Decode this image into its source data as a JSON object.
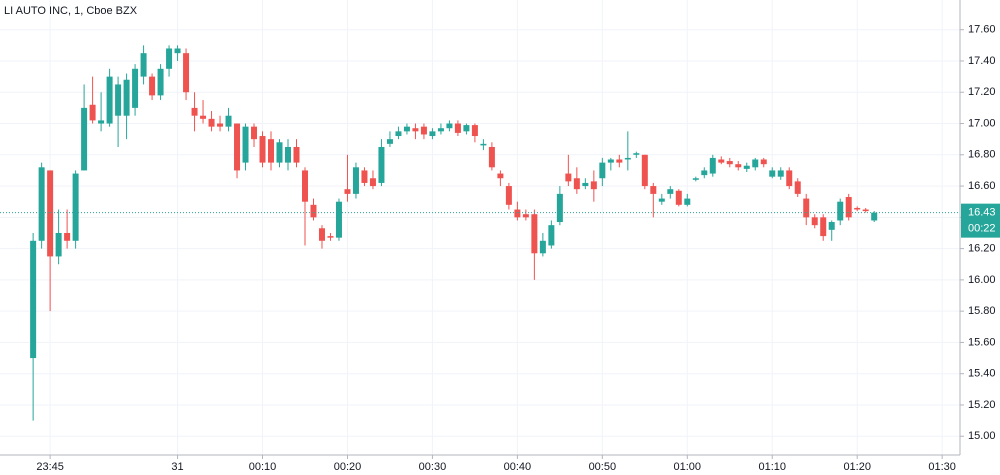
{
  "chart_data": {
    "type": "candlestick",
    "title": "LI AUTO INC, 1, Cboe BZX",
    "x": [
      -17,
      -16,
      -15,
      -14,
      -13,
      -12,
      -11,
      -10,
      -9,
      -8,
      -7,
      -6,
      -5,
      -4,
      -3,
      -2,
      -1,
      0,
      1,
      2,
      3,
      4,
      5,
      6,
      7,
      8,
      9,
      10,
      11,
      12,
      13,
      14,
      15,
      16,
      17,
      18,
      19,
      20,
      21,
      22,
      23,
      24,
      25,
      26,
      27,
      28,
      29,
      30,
      31,
      32,
      33,
      34,
      35,
      36,
      37,
      38,
      39,
      40,
      41,
      42,
      43,
      44,
      45,
      46,
      47,
      48,
      49,
      50,
      51,
      52,
      53,
      54,
      55,
      56,
      57,
      58,
      59,
      60,
      61,
      62,
      63,
      64,
      65,
      66,
      67,
      68,
      69,
      70,
      71,
      72,
      73,
      74,
      75,
      76,
      77,
      78,
      79,
      80,
      81,
      82
    ],
    "open": [
      15.5,
      16.25,
      16.7,
      16.15,
      16.3,
      16.25,
      16.7,
      17.12,
      17.0,
      17.0,
      17.05,
      17.05,
      17.1,
      17.3,
      17.3,
      17.18,
      17.35,
      17.45,
      17.45,
      17.1,
      17.05,
      17.03,
      17.0,
      16.98,
      17.0,
      16.75,
      16.98,
      16.92,
      16.9,
      16.75,
      16.75,
      16.85,
      16.7,
      16.48,
      16.33,
      16.28,
      16.27,
      16.58,
      16.55,
      16.7,
      16.65,
      16.62,
      16.87,
      16.92,
      16.95,
      16.97,
      16.98,
      16.92,
      16.95,
      16.97,
      17.0,
      16.95,
      16.99,
      16.86,
      16.85,
      16.68,
      16.6,
      16.45,
      16.42,
      16.42,
      16.17,
      16.22,
      16.37,
      16.68,
      16.65,
      16.6,
      16.63,
      16.65,
      16.75,
      16.77,
      16.77,
      16.8,
      16.8,
      16.6,
      16.5,
      16.55,
      16.57,
      16.48,
      16.64,
      16.67,
      16.68,
      16.77,
      16.76,
      16.74,
      16.71,
      16.72,
      16.77,
      16.66,
      16.66,
      16.7,
      16.63,
      16.52,
      16.4,
      16.4,
      16.32,
      16.38,
      16.53,
      16.46,
      16.45,
      16.38
    ],
    "high": [
      16.3,
      16.75,
      16.7,
      16.45,
      16.45,
      16.7,
      17.25,
      17.3,
      17.2,
      17.35,
      17.3,
      17.32,
      17.38,
      17.5,
      17.32,
      17.38,
      17.5,
      17.5,
      17.48,
      17.2,
      17.15,
      17.08,
      17.05,
      17.1,
      17.0,
      17.0,
      17.0,
      16.95,
      16.95,
      16.9,
      16.9,
      16.9,
      16.72,
      16.52,
      16.35,
      16.3,
      16.52,
      16.8,
      16.75,
      16.72,
      16.7,
      16.9,
      16.95,
      16.98,
      17.0,
      17.0,
      17.0,
      16.97,
      17.0,
      17.02,
      17.02,
      17.0,
      17.0,
      16.9,
      16.88,
      16.7,
      16.62,
      16.5,
      16.45,
      16.45,
      16.3,
      16.38,
      16.6,
      16.8,
      16.72,
      16.65,
      16.7,
      16.78,
      16.78,
      16.8,
      16.95,
      16.82,
      16.8,
      16.62,
      16.55,
      16.6,
      16.58,
      16.55,
      16.66,
      16.72,
      16.8,
      16.79,
      16.78,
      16.76,
      16.75,
      16.78,
      16.78,
      16.72,
      16.72,
      16.72,
      16.65,
      16.55,
      16.42,
      16.42,
      16.38,
      16.52,
      16.55,
      16.47,
      16.46,
      16.44
    ],
    "low": [
      15.1,
      16.2,
      15.8,
      16.1,
      16.2,
      16.2,
      16.7,
      17.0,
      16.95,
      16.98,
      16.85,
      16.9,
      17.05,
      17.25,
      17.15,
      17.15,
      17.3,
      17.4,
      17.15,
      16.95,
      17.0,
      16.95,
      16.95,
      16.95,
      16.65,
      16.7,
      16.85,
      16.72,
      16.7,
      16.72,
      16.7,
      16.72,
      16.22,
      16.38,
      16.2,
      16.25,
      16.25,
      16.5,
      16.52,
      16.6,
      16.58,
      16.6,
      16.85,
      16.9,
      16.93,
      16.9,
      16.9,
      16.9,
      16.93,
      16.95,
      16.92,
      16.93,
      16.88,
      16.83,
      16.7,
      16.6,
      16.45,
      16.38,
      16.38,
      16.0,
      16.15,
      16.2,
      16.35,
      16.6,
      16.55,
      16.58,
      16.5,
      16.6,
      16.7,
      16.72,
      16.7,
      16.78,
      16.58,
      16.4,
      16.48,
      16.52,
      16.47,
      16.47,
      16.63,
      16.65,
      16.66,
      16.74,
      16.72,
      16.7,
      16.69,
      16.7,
      16.72,
      16.65,
      16.64,
      16.58,
      16.53,
      16.35,
      16.33,
      16.25,
      16.25,
      16.35,
      16.38,
      16.44,
      16.43,
      16.37
    ],
    "close": [
      16.25,
      16.72,
      16.15,
      16.3,
      16.25,
      16.68,
      17.1,
      17.02,
      17.02,
      17.3,
      17.25,
      17.28,
      17.35,
      17.45,
      17.18,
      17.35,
      17.48,
      17.48,
      17.2,
      17.05,
      17.03,
      16.98,
      16.98,
      17.05,
      16.7,
      16.98,
      16.9,
      16.75,
      16.75,
      16.88,
      16.85,
      16.75,
      16.5,
      16.4,
      16.25,
      16.27,
      16.5,
      16.55,
      16.72,
      16.62,
      16.6,
      16.85,
      16.9,
      16.95,
      16.98,
      16.95,
      16.93,
      16.95,
      16.97,
      17.0,
      16.94,
      16.99,
      16.92,
      16.87,
      16.72,
      16.65,
      16.48,
      16.4,
      16.4,
      16.17,
      16.25,
      16.35,
      16.55,
      16.63,
      16.58,
      16.62,
      16.58,
      16.75,
      16.77,
      16.75,
      16.78,
      16.81,
      16.6,
      16.55,
      16.52,
      16.58,
      16.48,
      16.52,
      16.65,
      16.7,
      16.78,
      16.75,
      16.74,
      16.72,
      16.73,
      16.77,
      16.74,
      16.7,
      16.7,
      16.6,
      16.55,
      16.4,
      16.35,
      16.28,
      16.37,
      16.5,
      16.4,
      16.45,
      16.44,
      16.43
    ],
    "up_color": "#26a69a",
    "down_color": "#ef5350",
    "xlim": [
      -20.9,
      92.1
    ],
    "xticks": [
      {
        "value": -15,
        "label": "23:45"
      },
      {
        "value": 0,
        "label": "31"
      },
      {
        "value": 10,
        "label": "00:10"
      },
      {
        "value": 20,
        "label": "00:20"
      },
      {
        "value": 30,
        "label": "00:30"
      },
      {
        "value": 40,
        "label": "00:40"
      },
      {
        "value": 50,
        "label": "00:50"
      },
      {
        "value": 60,
        "label": "01:00"
      },
      {
        "value": 70,
        "label": "01:10"
      },
      {
        "value": 80,
        "label": "01:20"
      },
      {
        "value": 90,
        "label": "01:30"
      }
    ],
    "ylim": [
      14.88,
      17.79
    ],
    "yticks": [
      {
        "value": 15.0,
        "label": "15.00"
      },
      {
        "value": 15.2,
        "label": "15.20"
      },
      {
        "value": 15.4,
        "label": "15.40"
      },
      {
        "value": 15.6,
        "label": "15.60"
      },
      {
        "value": 15.8,
        "label": "15.80"
      },
      {
        "value": 16.0,
        "label": "16.00"
      },
      {
        "value": 16.2,
        "label": "16.20"
      },
      {
        "value": 16.4,
        "label": "16.40"
      },
      {
        "value": 16.6,
        "label": "16.60"
      },
      {
        "value": 16.8,
        "label": "16.80"
      },
      {
        "value": 17.0,
        "label": "17.00"
      },
      {
        "value": 17.2,
        "label": "17.20"
      },
      {
        "value": 17.4,
        "label": "17.40"
      },
      {
        "value": 17.6,
        "label": "17.60"
      }
    ],
    "grid": true,
    "last_price": {
      "value": 16.43,
      "label": "16.43"
    },
    "countdown": "00:22"
  }
}
